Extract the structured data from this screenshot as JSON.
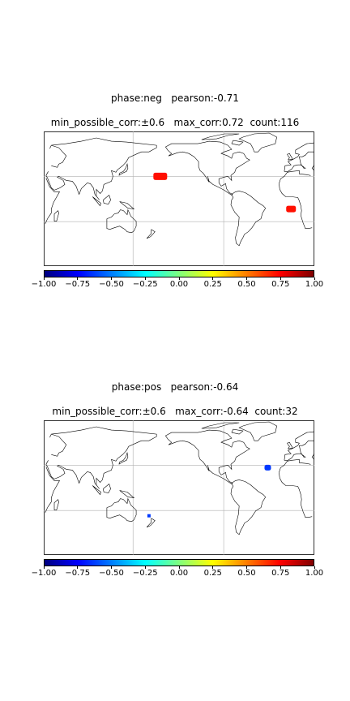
{
  "colors": {
    "background": "#ffffff",
    "coast": "#000000",
    "grid": "#b0b0b0",
    "jet": [
      "#00007f",
      "#0000ff",
      "#007fff",
      "#00ffff",
      "#7fff7f",
      "#ffff00",
      "#ff7f00",
      "#ff0000",
      "#7f0000"
    ]
  },
  "colorbar": {
    "ticks": [
      "−1.00",
      "−0.75",
      "−0.50",
      "−0.25",
      "0.00",
      "0.25",
      "0.50",
      "0.75",
      "1.00"
    ],
    "range": [
      -1.0,
      1.0
    ]
  },
  "panels": [
    {
      "title_line1": "phase:neg   pearson:-0.71",
      "title_line2": "min_possible_corr:±0.6   max_corr:0.72  count:116",
      "regions": [
        {
          "name": "north-pacific-patch",
          "lon": -175,
          "lat": 30,
          "value": 0.72
        },
        {
          "name": "south-atlantic-patch",
          "lon": -1,
          "lat": -10,
          "value": 0.72
        }
      ]
    },
    {
      "title_line1": "phase:pos   pearson:-0.64",
      "title_line2": "min_possible_corr:±0.6   max_corr:-0.64  count:32",
      "regions": [
        {
          "name": "north-atlantic-patch",
          "lon": -32,
          "lat": 27,
          "value": -0.64
        },
        {
          "name": "south-pacific-point",
          "lon": 170,
          "lat": -32,
          "value": -0.64
        }
      ]
    }
  ]
}
